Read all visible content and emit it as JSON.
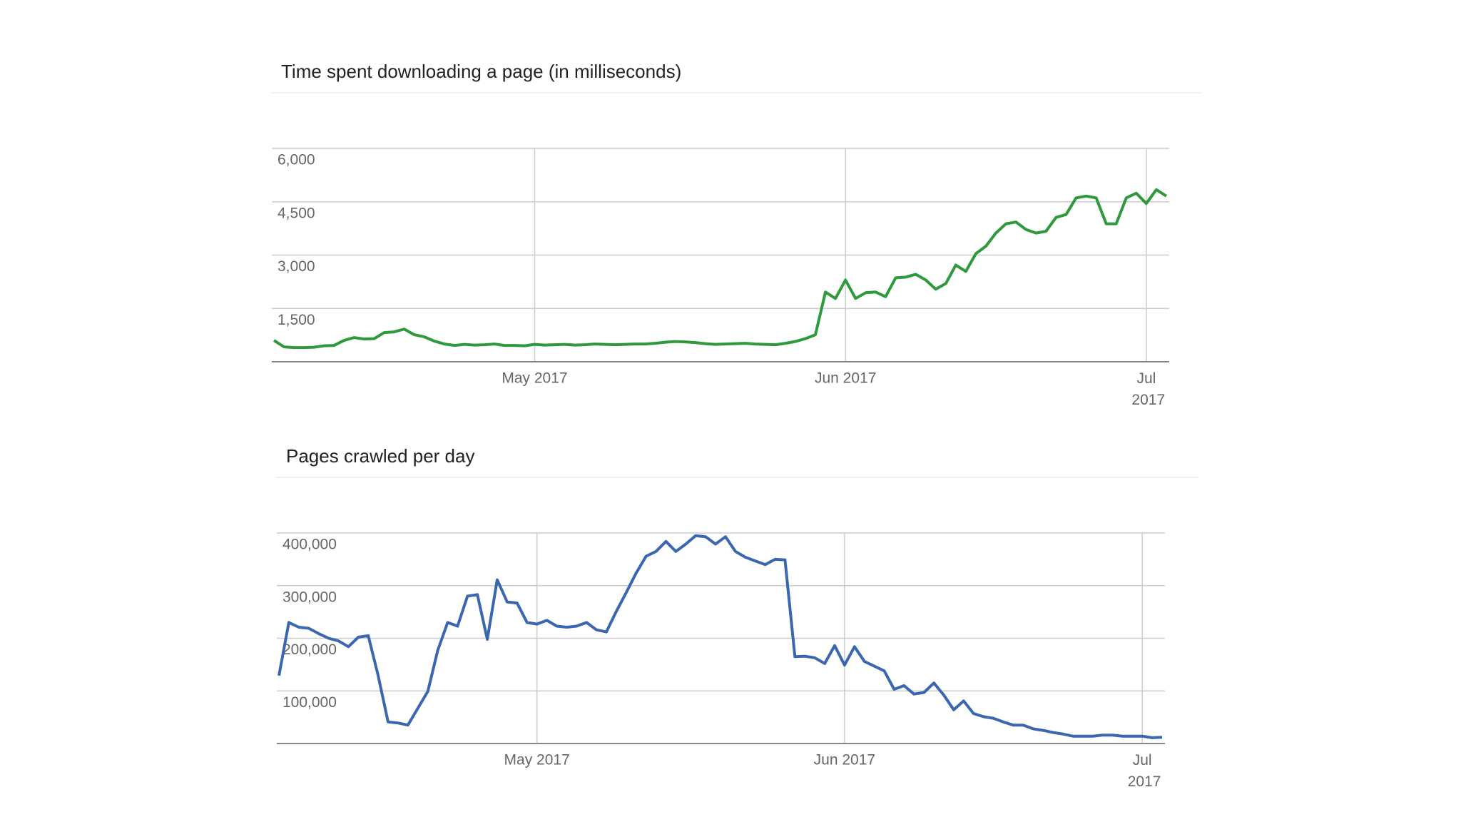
{
  "chart_data": [
    {
      "type": "line",
      "title": "Time spent downloading a page (in milliseconds)",
      "categories": [
        null,
        null,
        null,
        null,
        null,
        null,
        null,
        null,
        null,
        null,
        null,
        null,
        null,
        null,
        null,
        null,
        null,
        null,
        null,
        null,
        null,
        null,
        null,
        null,
        null,
        null,
        null,
        null,
        null,
        null,
        null,
        null,
        null,
        null,
        null,
        null,
        null,
        null,
        null,
        null,
        null,
        null,
        null,
        null,
        null,
        null,
        null,
        null,
        null,
        null,
        null,
        null,
        null,
        null,
        null,
        null,
        null,
        null,
        null,
        null,
        null,
        null,
        null,
        null,
        null,
        null,
        null,
        null,
        null,
        null,
        null,
        null,
        null,
        null,
        null,
        null,
        null,
        null,
        null,
        null,
        null,
        null,
        null,
        null,
        null,
        null,
        null,
        null,
        null,
        null
      ],
      "values": [
        600,
        420,
        400,
        400,
        410,
        450,
        460,
        600,
        680,
        640,
        650,
        820,
        840,
        920,
        760,
        700,
        580,
        500,
        460,
        490,
        470,
        480,
        500,
        460,
        460,
        450,
        490,
        470,
        480,
        490,
        470,
        480,
        500,
        490,
        480,
        490,
        500,
        500,
        520,
        550,
        570,
        560,
        540,
        510,
        490,
        500,
        510,
        520,
        500,
        490,
        480,
        520,
        570,
        650,
        760,
        1960,
        1780,
        2300,
        1780,
        1940,
        1960,
        1830,
        2360,
        2380,
        2460,
        2300,
        2040,
        2200,
        2720,
        2540,
        3040,
        3250,
        3620,
        3880,
        3930,
        3720,
        3620,
        3670,
        4060,
        4140,
        4610,
        4660,
        4610,
        3880,
        3880,
        4610,
        4740,
        4450,
        4840,
        4660
      ],
      "color": "#2e9a3c",
      "xticks": [
        {
          "value": 26,
          "label": "May 2017"
        },
        {
          "value": 57,
          "label": "Jun 2017"
        },
        {
          "value": 87,
          "label": "Jul 2017"
        }
      ],
      "ylim": [
        0,
        6000
      ],
      "yticks": [
        {
          "value": 1500,
          "label": "1,500"
        },
        {
          "value": 3000,
          "label": "3,000"
        },
        {
          "value": 4500,
          "label": "4,500"
        },
        {
          "value": 6000,
          "label": "6,000"
        }
      ],
      "grid": true
    },
    {
      "type": "line",
      "title": "Pages crawled per day",
      "categories": [
        null,
        null,
        null,
        null,
        null,
        null,
        null,
        null,
        null,
        null,
        null,
        null,
        null,
        null,
        null,
        null,
        null,
        null,
        null,
        null,
        null,
        null,
        null,
        null,
        null,
        null,
        null,
        null,
        null,
        null,
        null,
        null,
        null,
        null,
        null,
        null,
        null,
        null,
        null,
        null,
        null,
        null,
        null,
        null,
        null,
        null,
        null,
        null,
        null,
        null,
        null,
        null,
        null,
        null,
        null,
        null,
        null,
        null,
        null,
        null,
        null,
        null,
        null,
        null,
        null,
        null,
        null,
        null,
        null,
        null,
        null,
        null,
        null,
        null,
        null,
        null,
        null,
        null,
        null,
        null,
        null,
        null,
        null,
        null,
        null,
        null,
        null,
        null,
        null,
        null
      ],
      "values": [
        129000,
        230000,
        221000,
        219000,
        209000,
        200000,
        195000,
        184000,
        202000,
        205000,
        129000,
        41000,
        39000,
        35000,
        67000,
        99000,
        177000,
        230000,
        223000,
        280000,
        283000,
        198000,
        311000,
        269000,
        267000,
        230000,
        227000,
        234000,
        223000,
        221000,
        223000,
        230000,
        216000,
        212000,
        251000,
        287000,
        324000,
        356000,
        365000,
        384000,
        365000,
        379000,
        395000,
        393000,
        379000,
        393000,
        365000,
        354000,
        347000,
        340000,
        350000,
        349000,
        165000,
        166000,
        163000,
        152000,
        186000,
        149000,
        184000,
        156000,
        147000,
        138000,
        103000,
        110000,
        94000,
        97000,
        115000,
        92000,
        64000,
        81000,
        57000,
        51000,
        48000,
        41000,
        35000,
        35000,
        28000,
        25000,
        21000,
        18000,
        14000,
        14000,
        14000,
        16000,
        16000,
        14000,
        14000,
        14000,
        11000,
        12000
      ],
      "color": "#3a67b0",
      "xticks": [
        {
          "value": 26,
          "label": "May 2017"
        },
        {
          "value": 57,
          "label": "Jun 2017"
        },
        {
          "value": 87,
          "label": "Jul 2017"
        }
      ],
      "ylim": [
        0,
        400000
      ],
      "yticks": [
        {
          "value": 100000,
          "label": "100,000"
        },
        {
          "value": 200000,
          "label": "200,000"
        },
        {
          "value": 300000,
          "label": "300,000"
        },
        {
          "value": 400000,
          "label": "400,000"
        }
      ],
      "grid": true
    }
  ]
}
